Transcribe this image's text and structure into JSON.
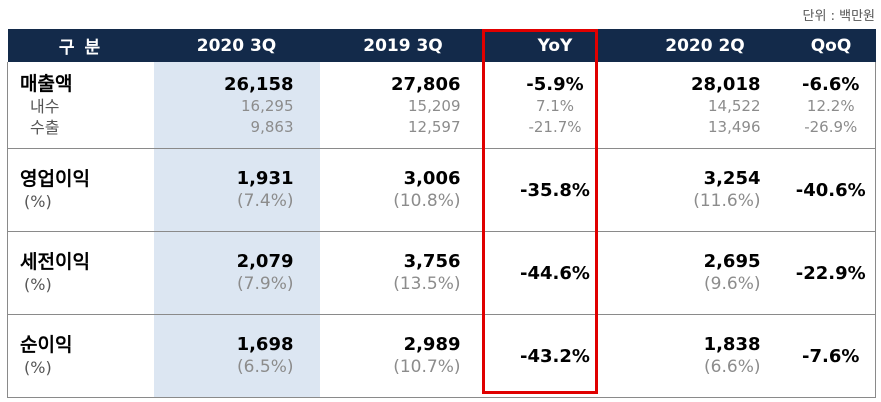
{
  "unit_label": "단위 : 백만원",
  "headers": [
    "구 분",
    "2020 3Q",
    "2019 3Q",
    "YoY",
    "2020 2Q",
    "QoQ"
  ],
  "sales": {
    "label": "매출액",
    "sub_labels": [
      "내수",
      "수출"
    ],
    "q2020_3": {
      "main": "26,158",
      "subs": [
        "16,295",
        "9,863"
      ]
    },
    "q2019_3": {
      "main": "27,806",
      "subs": [
        "15,209",
        "12,597"
      ]
    },
    "yoy": {
      "main": "-5.9%",
      "subs": [
        "7.1%",
        "-21.7%"
      ]
    },
    "q2020_2": {
      "main": "28,018",
      "subs": [
        "14,522",
        "13,496"
      ]
    },
    "qoq": {
      "main": "-6.6%",
      "subs": [
        "12.2%",
        "-26.9%"
      ]
    }
  },
  "rows": [
    {
      "label": "영업이익",
      "pct_label": "(%)",
      "q2020_3": {
        "value": "1,931",
        "pct": "(7.4%)"
      },
      "q2019_3": {
        "value": "3,006",
        "pct": "(10.8%)"
      },
      "yoy": "-35.8%",
      "q2020_2": {
        "value": "3,254",
        "pct": "(11.6%)"
      },
      "qoq": "-40.6%"
    },
    {
      "label": "세전이익",
      "pct_label": "(%)",
      "q2020_3": {
        "value": "2,079",
        "pct": "(7.9%)"
      },
      "q2019_3": {
        "value": "3,756",
        "pct": "(13.5%)"
      },
      "yoy": "-44.6%",
      "q2020_2": {
        "value": "2,695",
        "pct": "(9.6%)"
      },
      "qoq": "-22.9%"
    },
    {
      "label": "순이익",
      "pct_label": "(%)",
      "q2020_3": {
        "value": "1,698",
        "pct": "(6.5%)"
      },
      "q2019_3": {
        "value": "2,989",
        "pct": "(10.7%)"
      },
      "yoy": "-43.2%",
      "q2020_2": {
        "value": "1,838",
        "pct": "(6.6%)"
      },
      "qoq": "-7.6%"
    }
  ],
  "colors": {
    "header_bg": "#132a4a",
    "current_quarter_bg": "#dce6f2",
    "highlight_border": "#e00000"
  }
}
